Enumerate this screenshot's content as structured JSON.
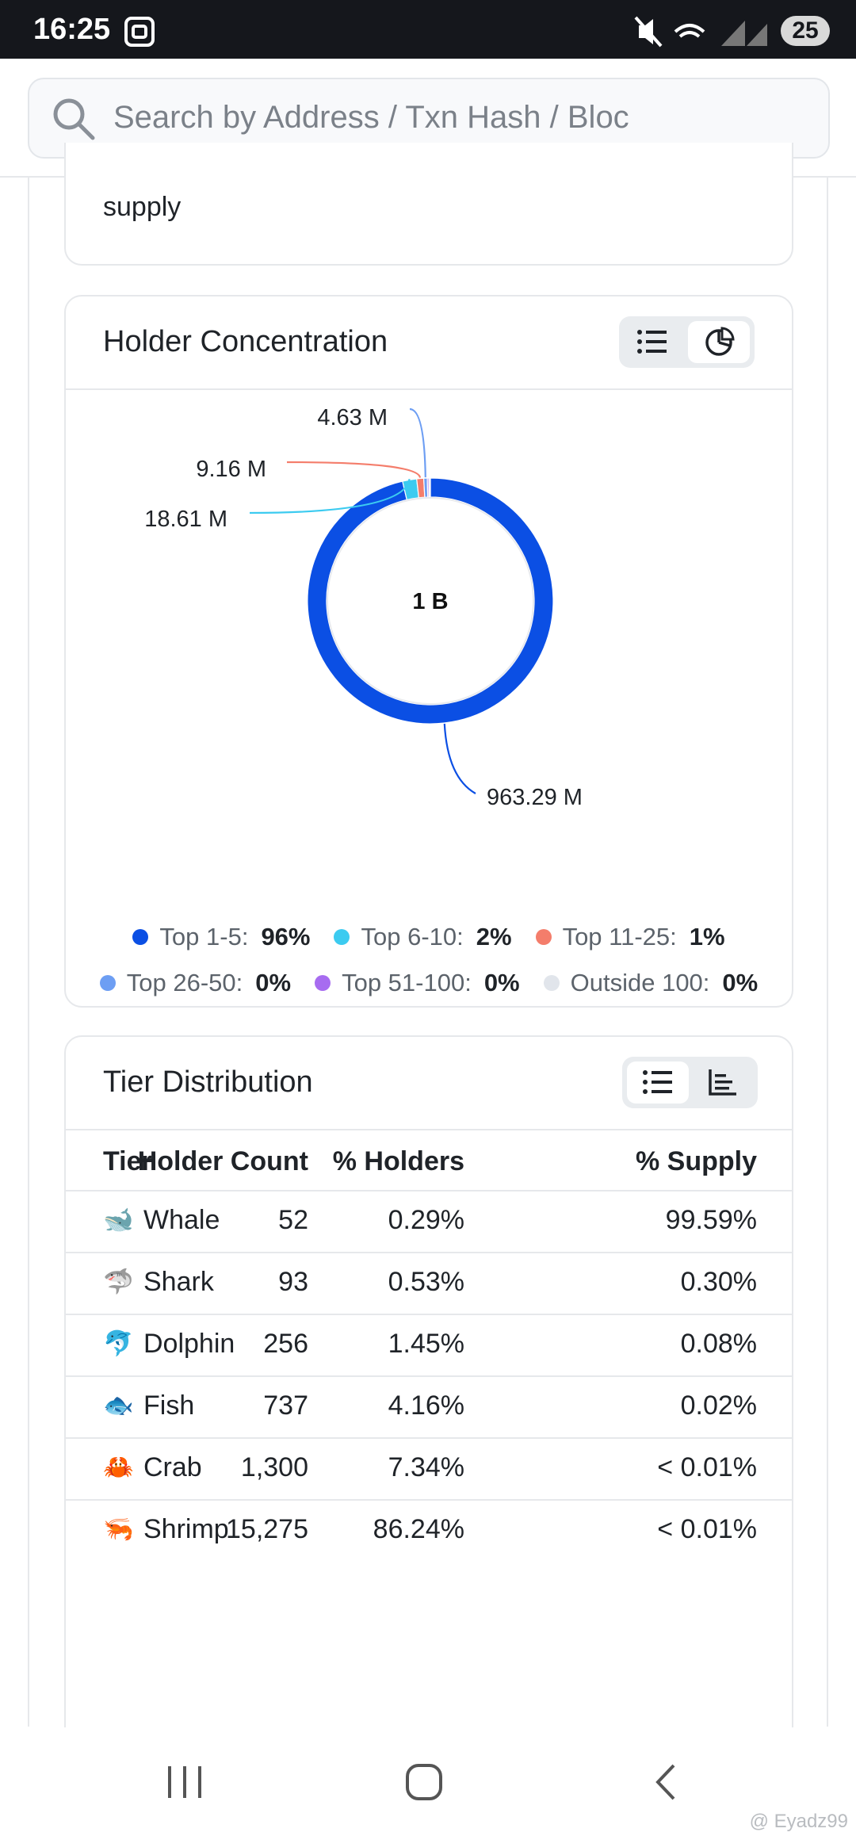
{
  "status_bar": {
    "time": "16:25",
    "battery": "25"
  },
  "search": {
    "placeholder": "Search by Address / Txn Hash / Bloc"
  },
  "previous_card": {
    "text": "supply"
  },
  "chart_data": {
    "type": "pie",
    "title": "Holder Concentration",
    "center_label": "1 B",
    "categories": [
      "Top 1-5:",
      "Top 6-10:",
      "Top 11-25:",
      "Top 26-50:",
      "Top 51-100:",
      "Outside 100:"
    ],
    "values": [
      963.29,
      18.61,
      9.16,
      4.63,
      2,
      2
    ],
    "value_labels": [
      "963.29 M",
      "18.61 M",
      "9.16 M",
      "4.63 M",
      null,
      null
    ],
    "share_labels": [
      "96%",
      "2%",
      "1%",
      "0%",
      "0%",
      "0%"
    ],
    "colors": [
      "#0b4fe4",
      "#3ccbf0",
      "#f47d6b",
      "#6d9ef3",
      "#a76cf0",
      "#e1e5eb"
    ]
  },
  "tier_distribution": {
    "title": "Tier Distribution",
    "columns": [
      "Tier",
      "Holder Count",
      "% Holders",
      "% Supply"
    ],
    "rows": [
      [
        "🐋",
        "Whale",
        "52",
        "0.29%",
        "99.59%"
      ],
      [
        "🦈",
        "Shark",
        "93",
        "0.53%",
        "0.30%"
      ],
      [
        "🐬",
        "Dolphin",
        "256",
        "1.45%",
        "0.08%"
      ],
      [
        "🐟",
        "Fish",
        "737",
        "4.16%",
        "0.02%"
      ],
      [
        "🦀",
        "Crab",
        "1,300",
        "7.34%",
        "< 0.01%"
      ],
      [
        "🦐",
        "Shrimp",
        "15,275",
        "86.24%",
        "< 0.01%"
      ]
    ]
  },
  "watermark": "@ Eyadz99"
}
